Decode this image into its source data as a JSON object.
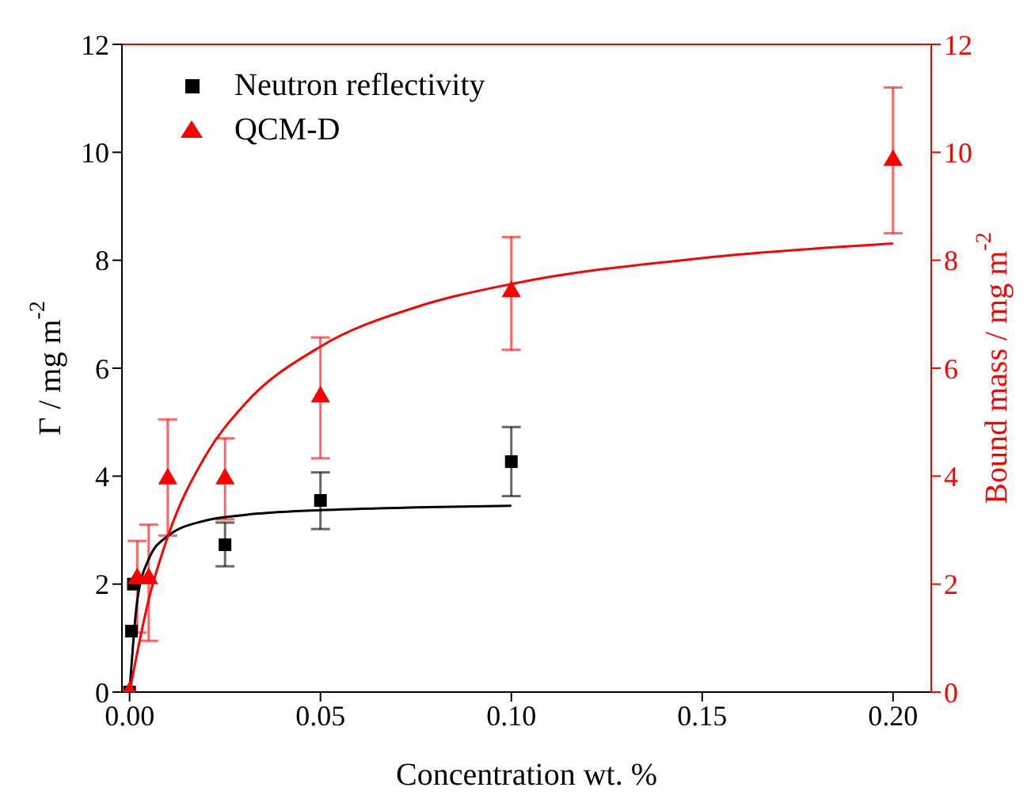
{
  "chart_data": {
    "type": "scatter",
    "xlabel": "Concentration wt. %",
    "ylabel": "Γ / mg m$^{-2}$",
    "y2label": "Bound mass / mg m$^{-2}$",
    "xlim": [
      -0.002,
      0.21
    ],
    "xticks": [
      {
        "value": 0,
        "label": "0.00"
      },
      {
        "value": 0.05,
        "label": "0.05"
      },
      {
        "value": 0.1,
        "label": "0.10"
      },
      {
        "value": 0.15,
        "label": "0.15"
      },
      {
        "value": 0.2,
        "label": "0.20"
      }
    ],
    "ylim": [
      0,
      12
    ],
    "yticks": [
      0,
      2,
      4,
      6,
      8,
      10,
      12
    ],
    "y2lim": [
      0,
      12
    ],
    "y2ticks": [
      0,
      2,
      4,
      6,
      8,
      10,
      12
    ],
    "legend": "top left",
    "series": [
      {
        "name": "Neutron reflectivity",
        "marker": "square",
        "color": "#000000",
        "x": [
          0,
          0.0005,
          0.001,
          0.025,
          0.05,
          0.1
        ],
        "values": [
          0,
          1.13,
          2.0,
          2.73,
          3.55,
          4.27
        ],
        "errors": [
          null,
          null,
          null,
          [
            2.33,
            3.14
          ],
          [
            3.02,
            4.07
          ],
          [
            3.63,
            4.91
          ]
        ]
      },
      {
        "name": "QCM-D",
        "marker": "triangle",
        "axis": "y2",
        "color": "#ff0000",
        "x": [
          0,
          0.002,
          0.005,
          0.01,
          0.025,
          0.05,
          0.1,
          0.2
        ],
        "values": [
          0,
          2.1,
          2.1,
          3.95,
          3.95,
          5.47,
          7.42,
          9.85
        ],
        "errors": [
          null,
          [
            1.1,
            2.8
          ],
          [
            0.95,
            3.1
          ],
          [
            2.9,
            5.05
          ],
          [
            3.2,
            4.7
          ],
          [
            4.33,
            6.57
          ],
          [
            6.34,
            8.43
          ],
          [
            8.5,
            11.2
          ]
        ]
      },
      {
        "type": "line",
        "color": "#000000",
        "x": [
          0,
          0.002,
          0.005,
          0.01,
          0.02,
          0.03,
          0.05,
          0.075,
          0.1
        ],
        "values": [
          0,
          1.69,
          2.46,
          2.89,
          3.18,
          3.28,
          3.37,
          3.42,
          3.45
        ]
      },
      {
        "type": "line",
        "axis": "y2",
        "color": "#ff0000",
        "x": [
          0,
          0.005,
          0.01,
          0.02,
          0.03,
          0.05,
          0.075,
          0.1,
          0.15,
          0.2
        ],
        "values": [
          0,
          1.71,
          2.88,
          4.39,
          5.32,
          6.4,
          7.13,
          7.56,
          8.04,
          8.31
        ]
      }
    ]
  }
}
